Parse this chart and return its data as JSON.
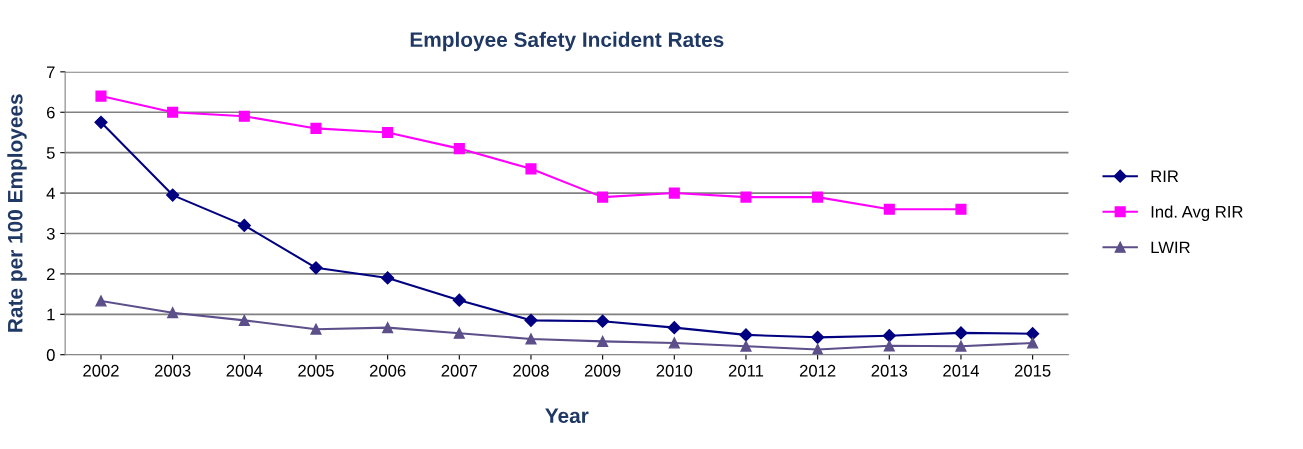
{
  "chart_data": {
    "type": "line",
    "title": "Employee Safety Incident Rates",
    "xlabel": "Year",
    "ylabel": "Rate per 100 Employees",
    "categories": [
      "2002",
      "2003",
      "2004",
      "2005",
      "2006",
      "2007",
      "2008",
      "2009",
      "2010",
      "2011",
      "2012",
      "2013",
      "2014",
      "2015"
    ],
    "series": [
      {
        "name": "RIR",
        "color": "#000080",
        "marker": "diamond",
        "values": [
          5.75,
          3.95,
          3.2,
          2.15,
          1.9,
          1.35,
          0.85,
          0.83,
          0.67,
          0.49,
          0.43,
          0.47,
          0.54,
          0.52
        ]
      },
      {
        "name": "Ind. Avg RIR",
        "color": "#ff00ff",
        "marker": "square",
        "values": [
          6.4,
          6.0,
          5.9,
          5.6,
          5.5,
          5.1,
          4.6,
          3.9,
          4.0,
          3.9,
          3.9,
          3.6,
          3.6,
          null
        ]
      },
      {
        "name": "LWIR",
        "color": "#5c4f8a",
        "marker": "triangle",
        "values": [
          1.33,
          1.04,
          0.85,
          0.63,
          0.67,
          0.53,
          0.39,
          0.33,
          0.29,
          0.21,
          0.13,
          0.22,
          0.21,
          0.29
        ]
      }
    ],
    "ylim": [
      0,
      7
    ],
    "yticks": [
      0,
      1,
      2,
      3,
      4,
      5,
      6,
      7
    ],
    "grid": "y",
    "legend": "right",
    "line_style": "solid"
  }
}
